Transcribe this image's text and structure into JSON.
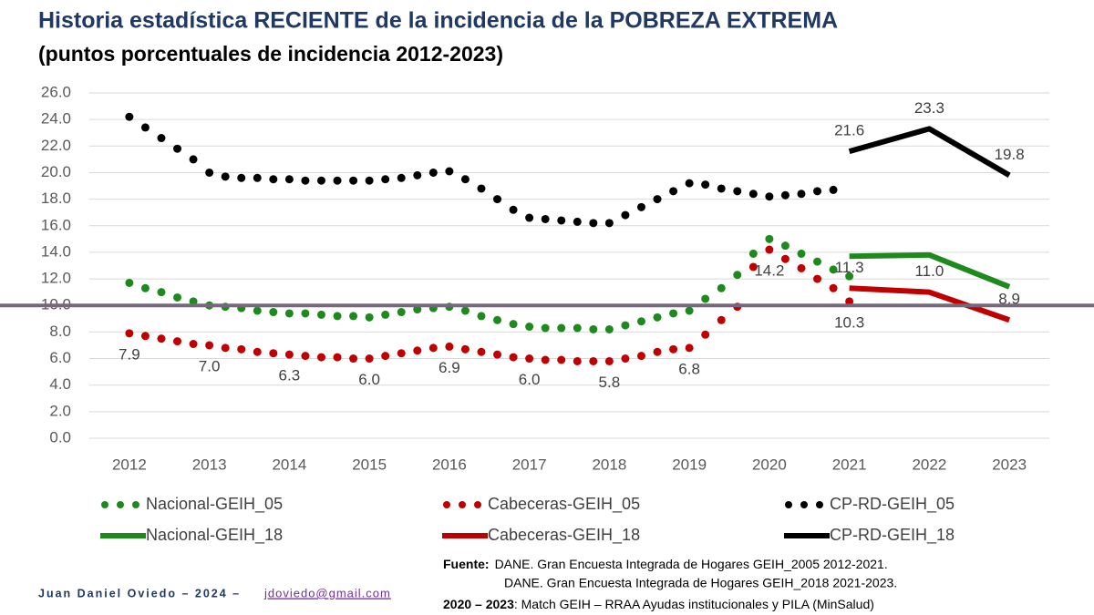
{
  "chart_data": {
    "type": "line",
    "title": "Historia estadística RECIENTE de la incidencia de la POBREZA EXTREMA",
    "subtitle": "(puntos porcentuales de incidencia 2012-2023)",
    "xlim": [
      2011.5,
      2023.5
    ],
    "xticks": [
      2012,
      2013,
      2014,
      2015,
      2016,
      2017,
      2018,
      2019,
      2020,
      2021,
      2022,
      2023
    ],
    "ylim": [
      0,
      26
    ],
    "yticks": [
      {
        "value": 0,
        "label": "0.0"
      },
      {
        "value": 2,
        "label": "2.0"
      },
      {
        "value": 4,
        "label": "4.0"
      },
      {
        "value": 6,
        "label": "6.0"
      },
      {
        "value": 8,
        "label": "8.0"
      },
      {
        "value": 10,
        "label": "10.0"
      },
      {
        "value": 12,
        "label": "12.0"
      },
      {
        "value": 14,
        "label": "14.0"
      },
      {
        "value": 16,
        "label": "16.0"
      },
      {
        "value": 18,
        "label": "18.0"
      },
      {
        "value": 20,
        "label": "20.0"
      },
      {
        "value": 22,
        "label": "22.0"
      },
      {
        "value": 24,
        "label": "24.0"
      },
      {
        "value": 26,
        "label": "26.0"
      }
    ],
    "grid": true,
    "hline": {
      "value": 10,
      "color": "#76687c"
    },
    "series": [
      {
        "name": "Nacional-GEIH_05",
        "color": "#1e8a1e",
        "style": "dotted",
        "x": [
          2012,
          2012.2,
          2012.4,
          2012.6,
          2012.8,
          2013,
          2013.2,
          2013.4,
          2013.6,
          2013.8,
          2014,
          2014.2,
          2014.4,
          2014.6,
          2014.8,
          2015,
          2015.2,
          2015.4,
          2015.6,
          2015.8,
          2016,
          2016.2,
          2016.4,
          2016.6,
          2016.8,
          2017,
          2017.2,
          2017.4,
          2017.6,
          2017.8,
          2018,
          2018.2,
          2018.4,
          2018.6,
          2018.8,
          2019,
          2019.2,
          2019.4,
          2019.6,
          2019.8,
          2020,
          2020.2,
          2020.4,
          2020.6,
          2020.8,
          2021
        ],
        "values": [
          11.7,
          11.3,
          11.0,
          10.6,
          10.3,
          10.0,
          9.9,
          9.8,
          9.6,
          9.5,
          9.4,
          9.4,
          9.3,
          9.2,
          9.2,
          9.1,
          9.3,
          9.5,
          9.7,
          9.8,
          9.9,
          9.6,
          9.2,
          8.9,
          8.6,
          8.4,
          8.3,
          8.3,
          8.3,
          8.2,
          8.2,
          8.5,
          8.8,
          9.1,
          9.4,
          9.6,
          10.5,
          11.3,
          12.3,
          13.9,
          15.0,
          14.5,
          13.9,
          13.3,
          12.7,
          12.2
        ]
      },
      {
        "name": "Cabeceras-GEIH_05",
        "color": "#c00000",
        "style": "dotted",
        "x": [
          2012,
          2012.2,
          2012.4,
          2012.6,
          2012.8,
          2013,
          2013.2,
          2013.4,
          2013.6,
          2013.8,
          2014,
          2014.2,
          2014.4,
          2014.6,
          2014.8,
          2015,
          2015.2,
          2015.4,
          2015.6,
          2015.8,
          2016,
          2016.2,
          2016.4,
          2016.6,
          2016.8,
          2017,
          2017.2,
          2017.4,
          2017.6,
          2017.8,
          2018,
          2018.2,
          2018.4,
          2018.6,
          2018.8,
          2019,
          2019.2,
          2019.4,
          2019.6,
          2019.8,
          2020,
          2020.2,
          2020.4,
          2020.6,
          2020.8,
          2021
        ],
        "values": [
          7.9,
          7.7,
          7.5,
          7.3,
          7.1,
          7.0,
          6.8,
          6.7,
          6.5,
          6.4,
          6.3,
          6.2,
          6.1,
          6.1,
          6.0,
          6.0,
          6.2,
          6.4,
          6.6,
          6.8,
          6.9,
          6.7,
          6.5,
          6.3,
          6.1,
          6.0,
          5.9,
          5.9,
          5.8,
          5.8,
          5.8,
          6.0,
          6.2,
          6.5,
          6.7,
          6.8,
          7.8,
          8.9,
          9.9,
          12.9,
          14.2,
          13.5,
          12.8,
          12.0,
          11.3,
          10.3
        ],
        "value_labels": [
          "7.9",
          null,
          null,
          null,
          null,
          "7.0",
          null,
          null,
          null,
          null,
          "6.3",
          null,
          null,
          null,
          null,
          "6.0",
          null,
          null,
          null,
          null,
          "6.9",
          null,
          null,
          null,
          null,
          "6.0",
          null,
          null,
          null,
          null,
          "5.8",
          null,
          null,
          null,
          null,
          "6.8",
          null,
          null,
          null,
          null,
          "14.2",
          null,
          null,
          null,
          null,
          "10.3"
        ]
      },
      {
        "name": "CP-RD-GEIH_05",
        "color": "#000000",
        "style": "dotted",
        "x": [
          2012,
          2012.2,
          2012.4,
          2012.6,
          2012.8,
          2013,
          2013.2,
          2013.4,
          2013.6,
          2013.8,
          2014,
          2014.2,
          2014.4,
          2014.6,
          2014.8,
          2015,
          2015.2,
          2015.4,
          2015.6,
          2015.8,
          2016,
          2016.2,
          2016.4,
          2016.6,
          2016.8,
          2017,
          2017.2,
          2017.4,
          2017.6,
          2017.8,
          2018,
          2018.2,
          2018.4,
          2018.6,
          2018.8,
          2019,
          2019.2,
          2019.4,
          2019.6,
          2019.8,
          2020,
          2020.2,
          2020.4,
          2020.6,
          2020.8
        ],
        "values": [
          24.2,
          23.4,
          22.6,
          21.8,
          21.0,
          20.0,
          19.7,
          19.6,
          19.6,
          19.5,
          19.5,
          19.4,
          19.4,
          19.4,
          19.4,
          19.4,
          19.5,
          19.6,
          19.8,
          20.0,
          20.1,
          19.5,
          18.8,
          18.0,
          17.2,
          16.6,
          16.5,
          16.4,
          16.3,
          16.2,
          16.2,
          16.8,
          17.4,
          18.0,
          18.6,
          19.2,
          19.1,
          18.8,
          18.6,
          18.4,
          18.2,
          18.3,
          18.4,
          18.6,
          18.7
        ]
      },
      {
        "name": "Nacional-GEIH_18",
        "color": "#1e8a1e",
        "style": "solid",
        "x": [
          2021,
          2022,
          2023
        ],
        "values": [
          13.7,
          13.8,
          11.4
        ]
      },
      {
        "name": "Cabeceras-GEIH_18",
        "color": "#c00000",
        "style": "solid",
        "x": [
          2021,
          2022,
          2023
        ],
        "values": [
          11.3,
          11.0,
          8.9
        ],
        "value_labels": [
          "11.3",
          "11.0",
          "8.9"
        ]
      },
      {
        "name": "CP-RD-GEIH_18",
        "color": "#000000",
        "style": "solid",
        "x": [
          2021,
          2022,
          2023
        ],
        "values": [
          21.6,
          23.3,
          19.8
        ],
        "value_labels": [
          "21.6",
          "23.3",
          "19.8"
        ]
      }
    ]
  },
  "footer": {
    "author": "Juan Daniel Oviedo – 2024 –",
    "email": "jdoviedo@gmail.com",
    "source_label": "Fuente:",
    "source_1": "DANE. Gran Encuesta Integrada de Hogares GEIH_2005 2012-2021.",
    "source_2": "DANE. Gran Encuesta Integrada de Hogares GEIH_2018 2021-2023.",
    "note_label": "2020 – 2023",
    "note": ": Match GEIH – RRAA Ayudas institucionales y PILA (MinSalud)"
  }
}
